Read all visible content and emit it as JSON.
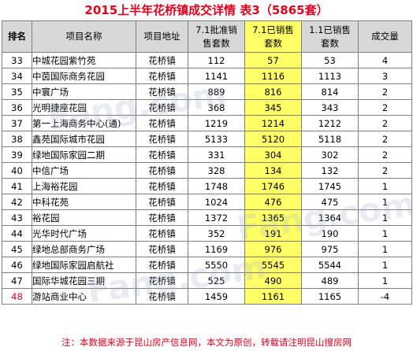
{
  "title": "2015上半年花桥镇成交详情 表3（5865套）",
  "headers": {
    "rank": "排名",
    "name": "项目名称",
    "location": "项目地址",
    "approved": [
      "7.1批准销",
      "售套数"
    ],
    "sold": [
      "7.1已销售",
      "套数"
    ],
    "sold_prev": [
      "1.1已销售",
      "套数"
    ],
    "volume": "成交量"
  },
  "rows": [
    {
      "rank": "33",
      "name": "中城花园紫竹苑",
      "location": "花桥镇",
      "approved": "112",
      "sold": "57",
      "sold_prev": "53",
      "volume": "4"
    },
    {
      "rank": "34",
      "name": "中茵国际商务花园",
      "location": "花桥镇",
      "approved": "1141",
      "sold": "1116",
      "sold_prev": "1113",
      "volume": "3"
    },
    {
      "rank": "35",
      "name": "中寰广场",
      "location": "花桥镇",
      "approved": "889",
      "sold": "816",
      "sold_prev": "814",
      "volume": "2"
    },
    {
      "rank": "36",
      "name": "光明捷座花园",
      "location": "花桥镇",
      "approved": "368",
      "sold": "345",
      "sold_prev": "343",
      "volume": "2"
    },
    {
      "rank": "37",
      "name": "第一上海商务中心(通)",
      "location": "花桥镇",
      "approved": "1219",
      "sold": "1214",
      "sold_prev": "1212",
      "volume": "2"
    },
    {
      "rank": "38",
      "name": "鑫苑国际城市花园",
      "location": "花桥镇",
      "approved": "5133",
      "sold": "5120",
      "sold_prev": "5118",
      "volume": "2"
    },
    {
      "rank": "39",
      "name": "绿地国际家园二期",
      "location": "花桥镇",
      "approved": "331",
      "sold": "304",
      "sold_prev": "302",
      "volume": "2"
    },
    {
      "rank": "40",
      "name": "中信广场",
      "location": "花桥镇",
      "approved": "328",
      "sold": "134",
      "sold_prev": "132",
      "volume": "2"
    },
    {
      "rank": "41",
      "name": "上海裕花园",
      "location": "花桥镇",
      "approved": "1748",
      "sold": "1746",
      "sold_prev": "1745",
      "volume": "1"
    },
    {
      "rank": "42",
      "name": "中科花苑",
      "location": "花桥镇",
      "approved": "1024",
      "sold": "476",
      "sold_prev": "475",
      "volume": "1"
    },
    {
      "rank": "43",
      "name": "裕花园",
      "location": "花桥镇",
      "approved": "1372",
      "sold": "1365",
      "sold_prev": "1364",
      "volume": "1"
    },
    {
      "rank": "44",
      "name": "光华时代广场",
      "location": "花桥镇",
      "approved": "352",
      "sold": "191",
      "sold_prev": "190",
      "volume": "1"
    },
    {
      "rank": "45",
      "name": "绿地总部商务广场",
      "location": "花桥镇",
      "approved": "1169",
      "sold": "976",
      "sold_prev": "975",
      "volume": "1"
    },
    {
      "rank": "46",
      "name": "绿地国际家园启航社",
      "location": "花桥镇",
      "approved": "5550",
      "sold": "5545",
      "sold_prev": "5544",
      "volume": "1"
    },
    {
      "rank": "47",
      "name": "国际华城花园三期",
      "location": "花桥镇",
      "approved": "525",
      "sold": "490",
      "sold_prev": "489",
      "volume": "1"
    },
    {
      "rank": "48",
      "name": "游站商业中心",
      "location": "花桥镇",
      "approved": "1459",
      "sold": "1161",
      "sold_prev": "1165",
      "volume": "-4"
    }
  ],
  "footnote": "注：本数据来源于昆山房产信息网，本文为原创，转载请注明昆山搜房网",
  "watermark": "Fang.com",
  "colors": {
    "title": "#e0001b",
    "highlight": "#ffff66",
    "header_bg": "#d8d8d8",
    "footnote": "#e0001b"
  }
}
